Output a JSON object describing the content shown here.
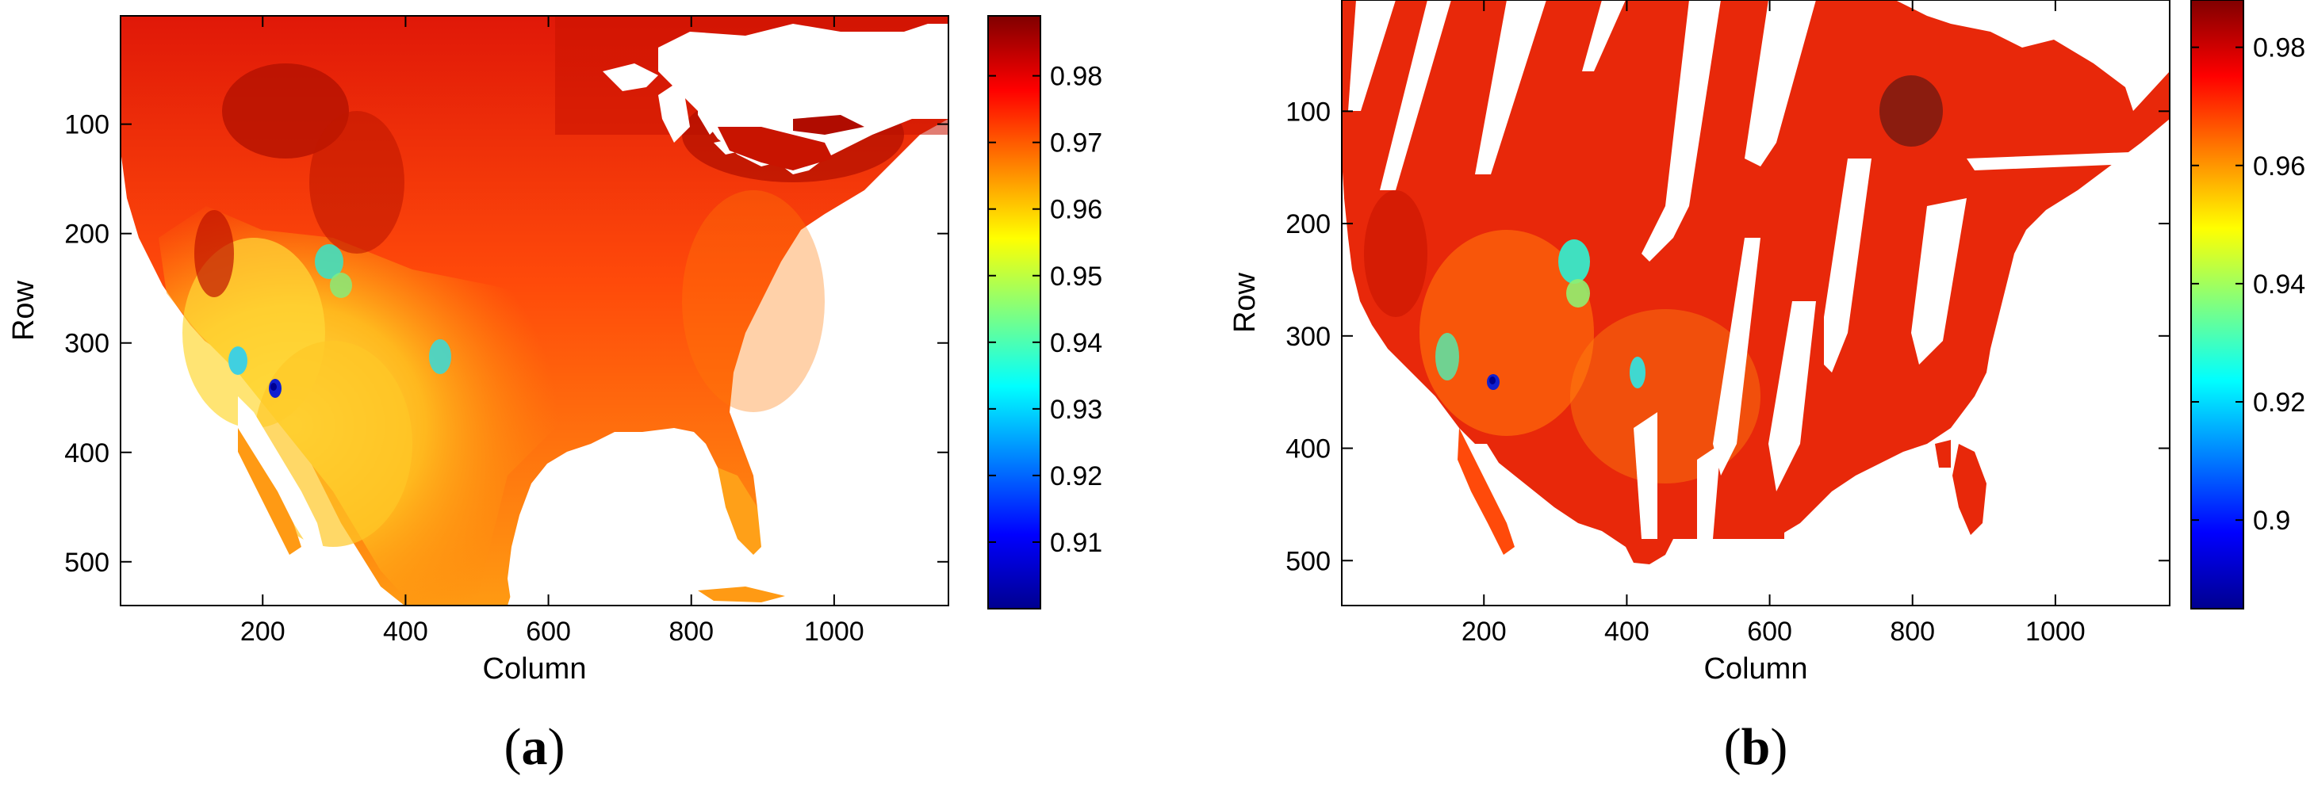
{
  "chart_data": [
    {
      "type": "heatmap",
      "panel": "(a)",
      "panel_letter": "a",
      "xlabel": "Column",
      "ylabel": "Row",
      "xlim": [
        1,
        1160
      ],
      "ylim": [
        540,
        1
      ],
      "xticks": [
        200,
        400,
        600,
        800,
        1000
      ],
      "yticks": [
        100,
        200,
        300,
        400,
        500
      ],
      "grid": false,
      "colormap": "jet",
      "colorbar": {
        "range": [
          0.9,
          0.989
        ],
        "ticks": [
          0.91,
          0.92,
          0.93,
          0.94,
          0.95,
          0.96,
          0.97,
          0.98
        ],
        "tick_labels": [
          "0.91",
          "0.92",
          "0.93",
          "0.94",
          "0.95",
          "0.96",
          "0.97",
          "0.98"
        ]
      },
      "coverage": "continuous"
    },
    {
      "type": "heatmap",
      "panel": "(b)",
      "panel_letter": "b",
      "xlabel": "Column",
      "ylabel": "Row",
      "xlim": [
        1,
        1160
      ],
      "ylim": [
        540,
        1
      ],
      "xticks": [
        200,
        400,
        600,
        800,
        1000
      ],
      "yticks": [
        100,
        200,
        300,
        400,
        500
      ],
      "grid": false,
      "colormap": "jet",
      "colorbar": {
        "range": [
          0.885,
          0.988
        ],
        "ticks": [
          0.9,
          0.92,
          0.94,
          0.96,
          0.98
        ],
        "tick_labels": [
          "0.9",
          "0.92",
          "0.94",
          "0.96",
          "0.98"
        ]
      },
      "coverage": "swath-gaps"
    }
  ]
}
